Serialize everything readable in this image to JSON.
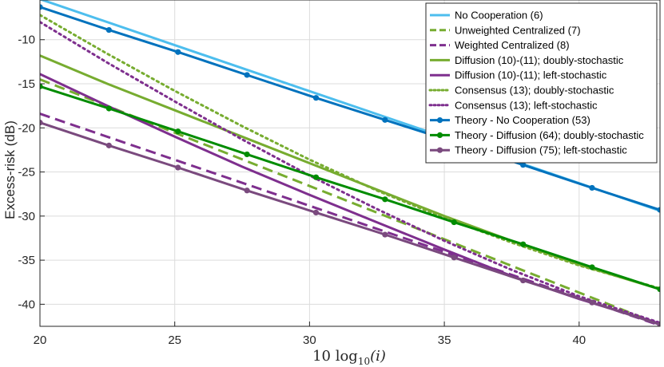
{
  "chart_data": {
    "type": "line",
    "title": "",
    "xlabel_prefix": "10 log",
    "xlabel_sub": "10",
    "xlabel_suffix": "(i)",
    "ylabel": "Excess-risk (dB)",
    "xlim": [
      20,
      43
    ],
    "ylim": [
      -42.5,
      -5.5
    ],
    "xticks": [
      20,
      25,
      30,
      35,
      40
    ],
    "xtick_labels": [
      "20",
      "25",
      "30",
      "35",
      "40"
    ],
    "yticks": [
      -10,
      -15,
      -20,
      -25,
      -30,
      -35,
      -40
    ],
    "ytick_labels": [
      "-10",
      "-15",
      "-20",
      "-25",
      "-30",
      "-35",
      "-40"
    ],
    "grid": true,
    "legend_position": "top-right",
    "series": [
      {
        "name": "No Cooperation (6)",
        "color": "#4DBEEE",
        "style": "solid",
        "marker": false,
        "x": [
          20,
          43
        ],
        "y": [
          -5.4,
          -29.4
        ]
      },
      {
        "name": "Unweighted Centralized (7)",
        "color": "#77AC30",
        "style": "dashed",
        "marker": false,
        "x": [
          20,
          43
        ],
        "y": [
          -14.5,
          -42.3
        ]
      },
      {
        "name": "Weighted Centralized (8)",
        "color": "#7E2F8E",
        "style": "dashed",
        "marker": false,
        "x": [
          20,
          43
        ],
        "y": [
          -18.4,
          -42.4
        ]
      },
      {
        "name": "Diffusion (10)-(11); doubly-stochastic",
        "color": "#77AC30",
        "style": "solid",
        "marker": false,
        "x": [
          20,
          22.5,
          25,
          27.5,
          30,
          32.5,
          35,
          37.5,
          40,
          43
        ],
        "y": [
          -11.8,
          -15.0,
          -18.0,
          -21.0,
          -24.0,
          -27.0,
          -30.0,
          -32.8,
          -35.5,
          -38.3
        ]
      },
      {
        "name": "Diffusion (10)-(11); left-stochastic",
        "color": "#7E2F8E",
        "style": "solid",
        "marker": false,
        "x": [
          20,
          22.5,
          25,
          27.5,
          30,
          32.5,
          35,
          37.5,
          40,
          43
        ],
        "y": [
          -13.9,
          -17.5,
          -21.0,
          -24.4,
          -27.6,
          -30.7,
          -33.8,
          -36.8,
          -39.4,
          -42.2
        ]
      },
      {
        "name": "Consensus (13); doubly-stochastic",
        "color": "#77AC30",
        "style": "dotted",
        "marker": false,
        "x": [
          20,
          22.5,
          25,
          27.5,
          30,
          32.5,
          35,
          37.5,
          40,
          43
        ],
        "y": [
          -7.2,
          -11.6,
          -15.8,
          -19.8,
          -23.6,
          -27.1,
          -30.2,
          -33.0,
          -35.6,
          -38.2
        ]
      },
      {
        "name": "Consensus (13); left-stochastic",
        "color": "#7E2F8E",
        "style": "dotted",
        "marker": false,
        "x": [
          20,
          22.5,
          25,
          27.5,
          30,
          32.5,
          35,
          37.5,
          40,
          43
        ],
        "y": [
          -8.0,
          -12.6,
          -17.0,
          -21.3,
          -25.4,
          -29.2,
          -32.8,
          -36.1,
          -39.1,
          -42.1
        ]
      },
      {
        "name": "Theory - No Cooperation (53)",
        "color": "#0072BD",
        "style": "solid",
        "marker": true,
        "x": [
          20,
          22.56,
          25.12,
          27.68,
          30.24,
          32.8,
          35.36,
          37.92,
          40.48,
          43
        ],
        "y": [
          -6.3,
          -8.9,
          -11.4,
          -14.0,
          -16.6,
          -19.1,
          -21.6,
          -24.2,
          -26.8,
          -29.3
        ]
      },
      {
        "name": "Theory - Diffusion (64); doubly-stochastic",
        "color": "#008C00",
        "style": "solid",
        "marker": true,
        "x": [
          20,
          22.56,
          25.12,
          27.68,
          30.24,
          32.8,
          35.36,
          37.92,
          40.48,
          43
        ],
        "y": [
          -15.3,
          -17.8,
          -20.4,
          -23.0,
          -25.6,
          -28.1,
          -30.7,
          -33.2,
          -35.8,
          -38.3
        ]
      },
      {
        "name": "Theory - Diffusion (75); left-stochastic",
        "color": "#7A4A7E",
        "style": "solid",
        "marker": true,
        "x": [
          20,
          22.56,
          25.12,
          27.68,
          30.24,
          32.8,
          35.36,
          37.92,
          40.48,
          43
        ],
        "y": [
          -19.4,
          -22.0,
          -24.5,
          -27.1,
          -29.6,
          -32.1,
          -34.7,
          -37.3,
          -39.8,
          -42.3
        ]
      }
    ]
  }
}
